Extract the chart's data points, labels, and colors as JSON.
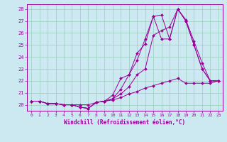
{
  "xlabel": "Windchill (Refroidissement éolien,°C)",
  "ylabel": "",
  "background_color": "#cce8f0",
  "line_color": "#990099",
  "grid_color": "#99ccbb",
  "xlim": [
    -0.5,
    23.5
  ],
  "ylim": [
    19.5,
    28.4
  ],
  "xticks": [
    0,
    1,
    2,
    3,
    4,
    5,
    6,
    7,
    8,
    9,
    10,
    11,
    12,
    13,
    14,
    15,
    16,
    17,
    18,
    19,
    20,
    21,
    22,
    23
  ],
  "yticks": [
    20,
    21,
    22,
    23,
    24,
    25,
    26,
    27,
    28
  ],
  "series": [
    [
      20.3,
      20.3,
      20.1,
      20.1,
      20.0,
      20.0,
      19.8,
      19.7,
      20.2,
      20.3,
      20.8,
      22.2,
      22.5,
      24.3,
      25.1,
      27.4,
      27.5,
      25.5,
      28.0,
      27.1,
      25.3,
      23.5,
      22.0,
      22.0
    ],
    [
      20.3,
      20.3,
      20.1,
      20.1,
      20.0,
      20.0,
      19.8,
      19.7,
      20.2,
      20.3,
      20.5,
      21.3,
      22.5,
      23.7,
      25.5,
      27.4,
      25.5,
      25.5,
      28.0,
      27.0,
      25.0,
      23.0,
      22.0,
      22.0
    ],
    [
      20.3,
      20.3,
      20.1,
      20.1,
      20.0,
      20.0,
      19.8,
      19.7,
      20.2,
      20.3,
      20.5,
      20.9,
      21.5,
      22.5,
      23.0,
      25.8,
      26.2,
      26.5,
      28.0,
      27.0,
      25.0,
      23.0,
      22.0,
      22.0
    ],
    [
      20.3,
      20.3,
      20.1,
      20.1,
      20.0,
      20.0,
      20.0,
      20.0,
      20.2,
      20.3,
      20.4,
      20.6,
      20.9,
      21.1,
      21.4,
      21.6,
      21.8,
      22.0,
      22.2,
      21.8,
      21.8,
      21.8,
      21.8,
      22.0
    ]
  ]
}
